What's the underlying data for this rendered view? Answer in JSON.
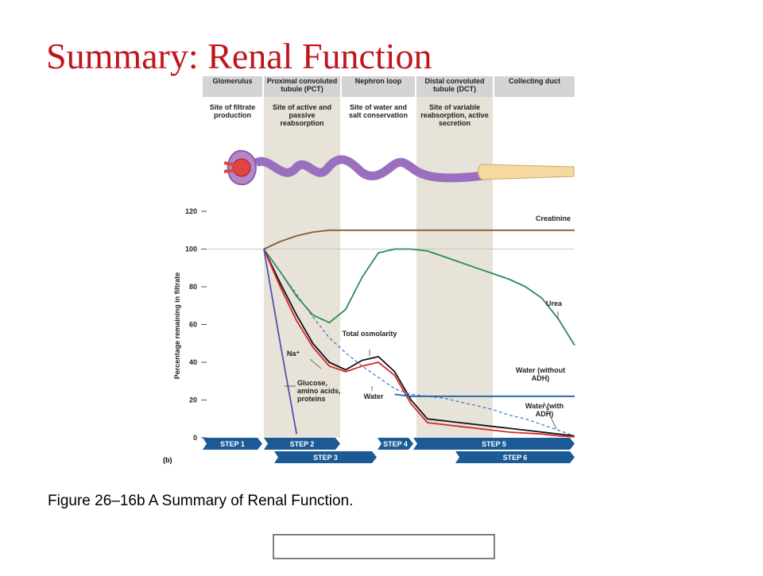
{
  "title": "Summary: Renal Function",
  "caption": "Figure 26–16b A Summary of Renal Function.",
  "panel_label": "(b)",
  "regions": [
    {
      "name": "Glomerulus",
      "description": "Site of filtrate production",
      "shaded": false
    },
    {
      "name": "Proximal convoluted tubule (PCT)",
      "description": "Site of active and passive reabsorption",
      "shaded": true
    },
    {
      "name": "Nephron loop",
      "description": "Site of water and salt conservation",
      "shaded": false
    },
    {
      "name": "Distal convoluted tubule (DCT)",
      "description": "Site of variable reabsorption, active secretion",
      "shaded": true
    },
    {
      "name": "Collecting duct",
      "description": "",
      "shaded": false
    }
  ],
  "steps": [
    "STEP 1",
    "STEP 2",
    "STEP 3",
    "STEP 4",
    "STEP 5",
    "STEP 6"
  ],
  "chart_data": {
    "type": "line",
    "y_label": "Percentage remaining in filtrate",
    "ylim": [
      0,
      120
    ],
    "yticks": [
      0,
      20,
      40,
      60,
      80,
      100,
      120
    ],
    "grid_at": [
      100
    ],
    "categories": [
      null,
      null,
      null,
      null,
      null,
      null,
      null,
      null,
      null,
      null,
      null,
      null,
      null,
      null,
      null,
      null,
      null,
      null,
      null,
      null
    ],
    "series": [
      {
        "name": "Creatinine",
        "color": "#8b5a3c",
        "style": "solid",
        "values": [
          100,
          104,
          107,
          109,
          110,
          110,
          110,
          110,
          110,
          110,
          110,
          110,
          110,
          110,
          110,
          110,
          110,
          110,
          110,
          110
        ]
      },
      {
        "name": "Urea",
        "color": "#2e8b57",
        "style": "solid",
        "values": [
          100,
          88,
          75,
          65,
          61,
          68,
          85,
          98,
          100,
          100,
          99,
          96,
          93,
          90,
          87,
          84,
          80,
          74,
          63,
          49
        ]
      },
      {
        "name": "Total osmolarity",
        "color": "#111111",
        "style": "solid",
        "values": [
          100,
          82,
          65,
          50,
          40,
          36,
          41,
          43,
          35,
          20,
          10,
          9,
          8,
          7,
          6,
          5,
          4,
          3,
          2,
          1
        ]
      },
      {
        "name": "Na⁺",
        "color": "#d62728",
        "style": "solid",
        "values": [
          100,
          80,
          62,
          48,
          38,
          35,
          38,
          40,
          33,
          18,
          8,
          7,
          6,
          5,
          4,
          3,
          2.5,
          2,
          1,
          0.5
        ]
      },
      {
        "name": "Water",
        "color": "#3a78c2",
        "style": "dashed",
        "values": [
          100,
          88,
          76,
          64,
          53,
          45,
          38,
          32,
          26,
          23,
          22,
          21,
          19,
          17,
          15,
          12,
          10,
          7,
          4,
          1
        ]
      },
      {
        "name": "Water (without ADH)",
        "color": "#1f5fa8",
        "style": "solid",
        "values": [
          null,
          null,
          null,
          null,
          null,
          null,
          null,
          null,
          23,
          22,
          22,
          22,
          22,
          22,
          22,
          22,
          22,
          22,
          22,
          22
        ]
      },
      {
        "name": "Glucose, amino acids, proteins",
        "color": "#5a4fb0",
        "style": "solid",
        "values": [
          100,
          50,
          2,
          null,
          null,
          null,
          null,
          null,
          null,
          null,
          null,
          null,
          null,
          null,
          null,
          null,
          null,
          null,
          null,
          null
        ]
      }
    ],
    "annotations": [
      "Water (with ADH)"
    ]
  }
}
